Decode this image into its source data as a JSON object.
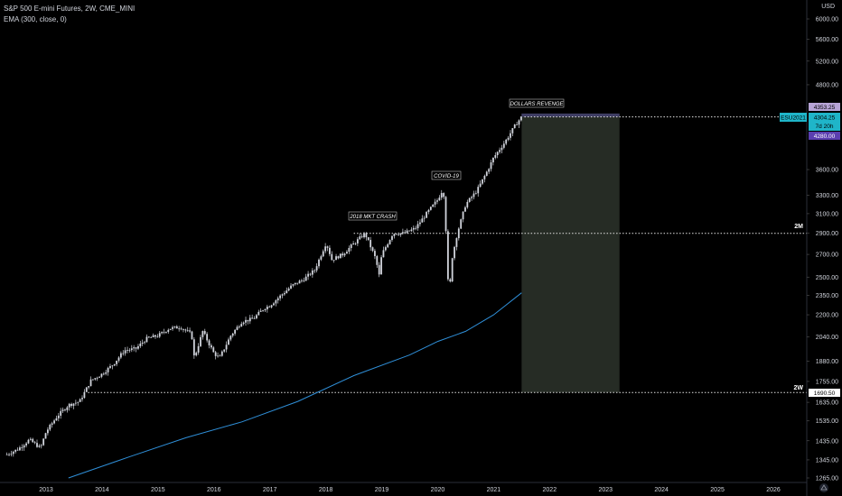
{
  "header": {
    "title": "S&P 500 E-mini Futures, 2W, CME_MINI",
    "indicator": "EMA (300, close, 0)"
  },
  "price_axis": {
    "currency": "USD",
    "ticks": [
      "6000.00",
      "5600.00",
      "5200.00",
      "4800.00",
      "3600.00",
      "3300.00",
      "3100.00",
      "2900.00",
      "2700.00",
      "2500.00",
      "2350.00",
      "2200.00",
      "2040.00",
      "1880.00",
      "1755.00",
      "1635.00",
      "1535.00",
      "1435.00",
      "1345.00",
      "1265.00"
    ]
  },
  "time_axis": {
    "ticks": [
      "2013",
      "2014",
      "2015",
      "2016",
      "2017",
      "2018",
      "2019",
      "2020",
      "2021",
      "2022",
      "2023",
      "2024",
      "2025",
      "2026"
    ]
  },
  "price_labels": {
    "high": "4353.25",
    "last": "4304.25",
    "countdown": "7d 20h",
    "entry": "4280.00",
    "bottom": "1690.50",
    "symbol": "ESU2021"
  },
  "level_labels": {
    "two_month": "2M",
    "two_week": "2W"
  },
  "annotations": {
    "crash_2018": "2018 MKT CRASH",
    "covid": "COVID-19",
    "dollars": "DOLLARS REVENGE"
  },
  "colors": {
    "background": "#000000",
    "candle": "#d1d4dc",
    "ema": "#2f8fd8",
    "dotted_line": "#e6e6e6",
    "projection_box": "#262c25",
    "projection_top": "#3e3d63",
    "last_price_bg": "#1fb5c9",
    "entry_bg": "#5b3fb0",
    "high_bg": "#b7a4d6"
  },
  "chart_data": {
    "type": "candlestick",
    "title": "S&P 500 E-mini Futures, 2W, CME_MINI",
    "ylabel": "USD",
    "y_scale": "log",
    "ylim": [
      1265,
      6400
    ],
    "xlim": [
      2012.3,
      2026.7
    ],
    "x": [
      2012.3,
      2012.5,
      2012.7,
      2012.9,
      2013.0,
      2013.2,
      2013.4,
      2013.6,
      2013.8,
      2014.0,
      2014.2,
      2014.4,
      2014.6,
      2014.8,
      2015.0,
      2015.2,
      2015.4,
      2015.6,
      2015.65,
      2015.8,
      2016.0,
      2016.1,
      2016.3,
      2016.5,
      2016.7,
      2016.9,
      2017.0,
      2017.2,
      2017.4,
      2017.6,
      2017.8,
      2018.0,
      2018.05,
      2018.1,
      2018.3,
      2018.5,
      2018.7,
      2018.9,
      2018.95,
      2019.0,
      2019.2,
      2019.4,
      2019.6,
      2019.8,
      2020.0,
      2020.1,
      2020.15,
      2020.2,
      2020.25,
      2020.35,
      2020.5,
      2020.7,
      2020.9,
      2021.0,
      2021.2,
      2021.4,
      2021.5
    ],
    "close": [
      1370,
      1395,
      1440,
      1400,
      1480,
      1560,
      1620,
      1640,
      1760,
      1800,
      1860,
      1950,
      1960,
      2030,
      2050,
      2100,
      2110,
      2060,
      1900,
      2080,
      1930,
      1900,
      2050,
      2150,
      2170,
      2250,
      2270,
      2350,
      2430,
      2480,
      2560,
      2800,
      2750,
      2650,
      2700,
      2800,
      2900,
      2650,
      2500,
      2700,
      2900,
      2900,
      2950,
      3100,
      3250,
      3380,
      2900,
      2300,
      2650,
      2900,
      3200,
      3350,
      3600,
      3750,
      3950,
      4200,
      4304.25
    ],
    "ema": {
      "name": "EMA (300, close, 0)",
      "x": [
        2013.4,
        2014.5,
        2015.5,
        2016.5,
        2017.5,
        2018.5,
        2019.5,
        2020.0,
        2020.5,
        2021.0,
        2021.5
      ],
      "y": [
        1265,
        1360,
        1450,
        1530,
        1640,
        1790,
        1920,
        2010,
        2080,
        2200,
        2370
      ]
    },
    "levels": [
      {
        "label": "2M",
        "y": 2900
      },
      {
        "label": "2W",
        "y": 1690.5
      }
    ],
    "projection": {
      "x": [
        2021.5,
        2023.25
      ],
      "y": [
        1690.5,
        4353.25
      ]
    },
    "markers": [
      {
        "text": "2018 MKT CRASH",
        "x": 2018.75,
        "y": 2950
      },
      {
        "text": "COVID-19",
        "x": 2020.2,
        "y": 3400
      },
      {
        "text": "DOLLARS REVENGE",
        "x": 2021.75,
        "y": 4353.25
      }
    ]
  }
}
